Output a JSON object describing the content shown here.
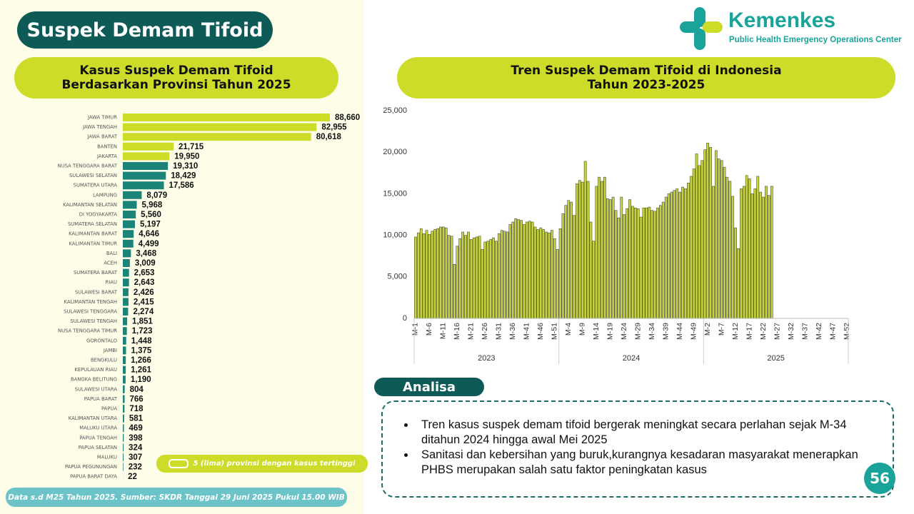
{
  "header": {
    "title": "Suspek Demam Tifoid",
    "logo_name": "Kemenkes",
    "logo_subtitle": "Public Health Emergency Operations Center"
  },
  "chart_data": [
    {
      "type": "hbar",
      "title": [
        "Kasus Suspek Demam Tifoid",
        "Berdasarkan Provinsi Tahun 2025"
      ],
      "categories": [
        "JAWA TIMUR",
        "JAWA TENGAH",
        "JAWA BARAT",
        "BANTEN",
        "JAKARTA",
        "NUSA TENGGARA BARAT",
        "SULAWESI SELATAN",
        "SUMATERA UTARA",
        "LAMPUNG",
        "KALIMANTAN SELATAN",
        "DI YOGYAKARTA",
        "SUMATERA SELATAN",
        "KALIMANTAN BARAT",
        "KALIMANTAN TIMUR",
        "BALI",
        "ACEH",
        "SUMATERA BARAT",
        "RIAU",
        "SULAWESI BARAT",
        "KALIMANTAN TENGAH",
        "SULAWESI TENGGARA",
        "SULAWESI TENGAH",
        "NUSA TENGGARA TIMUR",
        "GORONTALO",
        "JAMBI",
        "BENGKULU",
        "KEPULAUAN RIAU",
        "BANGKA BELITUNG",
        "SULAWESI UTARA",
        "PAPUA BARAT",
        "PAPUA",
        "KALIMANTAN UTARA",
        "MALUKU UTARA",
        "PAPUA TENGAH",
        "PAPUA SELATAN",
        "MALUKU",
        "PAPUA PEGUNUNGAN",
        "PAPUA BARAT DAYA"
      ],
      "values": [
        88660,
        82955,
        80618,
        21715,
        19950,
        19310,
        18429,
        17586,
        8079,
        5968,
        5560,
        5197,
        4646,
        4499,
        3468,
        3009,
        2653,
        2643,
        2426,
        2415,
        2274,
        1851,
        1723,
        1448,
        1375,
        1266,
        1261,
        1190,
        804,
        766,
        718,
        581,
        469,
        398,
        324,
        307,
        232,
        22
      ],
      "value_labels": [
        "88,660",
        "82,955",
        "80,618",
        "21,715",
        "19,950",
        "19,310",
        "18,429",
        "17,586",
        "8,079",
        "5,968",
        "5,560",
        "5,197",
        "4,646",
        "4,499",
        "3,468",
        "3,009",
        "2,653",
        "2,643",
        "2,426",
        "2,415",
        "2,274",
        "1,851",
        "1,723",
        "1,448",
        "1,375",
        "1,266",
        "1,261",
        "1,190",
        "804",
        "766",
        "718",
        "581",
        "469",
        "398",
        "324",
        "307",
        "232",
        "22"
      ],
      "colors": [
        "#cddc29",
        "#cddc29",
        "#cddc29",
        "#cddc29",
        "#cddc29",
        "#1b8378",
        "#1b8378",
        "#1b8378",
        "#1b8378",
        "#1b8378",
        "#1b8378",
        "#1b8378",
        "#1b8378",
        "#1b8378",
        "#1b8378",
        "#1b8378",
        "#1b8378",
        "#1b8378",
        "#1b8378",
        "#1b8378",
        "#1b8378",
        "#1b8378",
        "#1b8378",
        "#1b8378",
        "#1b8378",
        "#1b8378",
        "#1b8378",
        "#1b8378",
        "#1b8378",
        "#1b8378",
        "#1b8378",
        "#1b8378",
        "#1b8378",
        "#1b8378",
        "#1b8378",
        "#1b8378",
        "#1b8378",
        "#1b8378"
      ],
      "legend": {
        "label": "5 (lima) provinsi dengan kasus tertinggi",
        "color": "#cddc29"
      }
    },
    {
      "type": "column",
      "title": [
        "Tren Suspek Demam Tifoid di Indonesia",
        "Tahun 2023-2025"
      ],
      "color": "#c6d43a",
      "categories": [
        "M-1",
        null,
        null,
        null,
        null,
        "M-6",
        null,
        null,
        null,
        null,
        "M-11",
        null,
        null,
        null,
        null,
        "M-16",
        null,
        null,
        null,
        null,
        "M-21",
        null,
        null,
        null,
        null,
        "M-26",
        null,
        null,
        null,
        null,
        "M-31",
        null,
        null,
        null,
        null,
        "M-36",
        null,
        null,
        null,
        null,
        "M-41",
        null,
        null,
        null,
        null,
        "M-46",
        null,
        null,
        null,
        null,
        "M-51",
        null,
        null,
        null,
        null,
        "M-4",
        null,
        null,
        null,
        null,
        "M-9",
        null,
        null,
        null,
        null,
        "M-14",
        null,
        null,
        null,
        null,
        "M-19",
        null,
        null,
        null,
        null,
        "M-24",
        null,
        null,
        null,
        null,
        "M-29",
        null,
        null,
        null,
        null,
        "M-34",
        null,
        null,
        null,
        null,
        "M-39",
        null,
        null,
        null,
        null,
        "M-44",
        null,
        null,
        null,
        null,
        "M-49",
        null,
        null,
        null,
        null,
        "M-2",
        null,
        null,
        null,
        null,
        "M-7",
        null,
        null,
        null,
        null,
        "M-12",
        null,
        null,
        null,
        null,
        "M-17",
        null,
        null,
        null,
        null,
        "M-22",
        null,
        null,
        null,
        null,
        "M-27",
        null,
        null,
        null,
        null,
        "M-32",
        null,
        null,
        null,
        null,
        "M-37",
        null,
        null,
        null,
        null,
        "M-42",
        null,
        null,
        null,
        null,
        "M-47",
        null,
        null,
        null,
        null,
        "M-52"
      ],
      "groups": [
        "2023",
        "2024",
        "2025"
      ],
      "values": [
        9800,
        10300,
        10800,
        10200,
        10600,
        10100,
        10500,
        10700,
        10800,
        11000,
        11000,
        10900,
        10000,
        9900,
        6500,
        8700,
        9600,
        10400,
        10000,
        10400,
        9500,
        9700,
        9800,
        9900,
        8300,
        9200,
        9300,
        9500,
        9700,
        9300,
        10200,
        10600,
        10500,
        10400,
        11300,
        11600,
        12000,
        11900,
        11800,
        11300,
        11600,
        11700,
        11600,
        11000,
        10700,
        10900,
        10700,
        10400,
        10300,
        10600,
        9600,
        8300,
        10800,
        12600,
        13600,
        14200,
        14000,
        12400,
        16200,
        16600,
        16400,
        18900,
        16500,
        11600,
        9300,
        15900,
        17000,
        16500,
        17000,
        14400,
        14300,
        14600,
        13000,
        12100,
        14600,
        12500,
        13200,
        14300,
        13500,
        13300,
        13200,
        12200,
        13300,
        13300,
        13400,
        13000,
        12900,
        13300,
        13600,
        14000,
        14600,
        15000,
        15200,
        15400,
        15600,
        15200,
        15800,
        15600,
        16300,
        17100,
        18000,
        19800,
        18400,
        19000,
        20300,
        21100,
        20600,
        15900,
        20200,
        19200,
        19000,
        18200,
        17000,
        16500,
        14700,
        10900,
        8400,
        15600,
        15900,
        17200,
        16800,
        15000,
        15600,
        17100,
        15200,
        14600,
        15900,
        14800,
        15900,
        null,
        null,
        null,
        null,
        null,
        null,
        null,
        null,
        null,
        null,
        null,
        null,
        null,
        null,
        null,
        null,
        null,
        null,
        null,
        null,
        null,
        null,
        null,
        null,
        null,
        null,
        null
      ],
      "ylim": [
        0,
        25000
      ],
      "yticks": [
        0,
        {
          "value": 5000,
          "label": "5,000"
        },
        {
          "value": 10000,
          "label": "10,000"
        },
        {
          "value": 15000,
          "label": "15,000"
        },
        {
          "value": 20000,
          "label": "20,000"
        },
        {
          "value": 25000,
          "label": "25,000"
        }
      ]
    }
  ],
  "analysis": {
    "title": "Analisa",
    "points": [
      "Tren kasus suspek demam tifoid  bergerak meningkat secara perlahan sejak M-34 ditahun 2024 hingga awal Mei 2025",
      "Sanitasi dan kebersihan yang buruk,kurangnya kesadaran masyarakat menerapkan PHBS merupakan salah satu faktor peningkatan kasus"
    ]
  },
  "footer": {
    "note": "Data s.d M25 Tahun 2025. Sumber: SKDR Tanggal 29 Juni 2025 Pukul 15.00 WIB",
    "page_number": "56"
  }
}
